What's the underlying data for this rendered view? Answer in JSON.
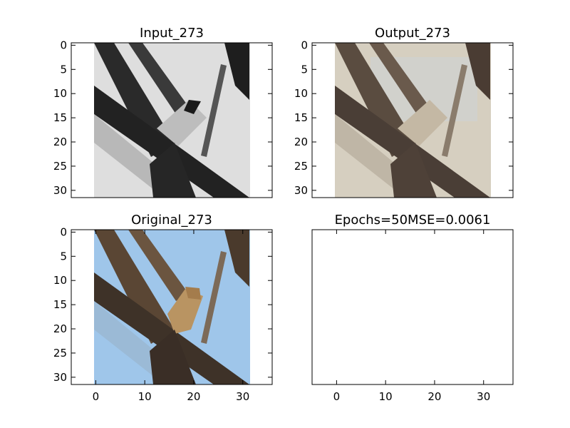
{
  "chart_data": [
    {
      "type": "image",
      "title": "Input_273",
      "image": "grayscale",
      "xlim": [
        -5,
        36
      ],
      "ylim": [
        31.5,
        -0.5
      ],
      "xticks": [],
      "yticks": [
        0,
        5,
        10,
        15,
        20,
        25,
        30
      ],
      "extent": [
        -0.5,
        31.5,
        31.5,
        -0.5
      ]
    },
    {
      "type": "image",
      "title": "Output_273",
      "image": "reconstruction",
      "xlim": [
        -5,
        36
      ],
      "ylim": [
        31.5,
        -0.5
      ],
      "xticks": [],
      "yticks": [
        0,
        5,
        10,
        15,
        20,
        25,
        30
      ],
      "extent": [
        -0.5,
        31.5,
        31.5,
        -0.5
      ]
    },
    {
      "type": "image",
      "title": "Original_273",
      "image": "color",
      "xlim": [
        -5,
        36
      ],
      "ylim": [
        31.5,
        -0.5
      ],
      "xticks": [
        0,
        10,
        20,
        30
      ],
      "yticks": [
        0,
        5,
        10,
        15,
        20,
        25,
        30
      ],
      "extent": [
        -0.5,
        31.5,
        31.5,
        -0.5
      ]
    },
    {
      "type": "image",
      "title": "Epochs=50MSE=0.0061",
      "image": "none",
      "xlim": [
        -5,
        36
      ],
      "ylim": [
        31.5,
        -0.5
      ],
      "xticks": [
        0,
        10,
        20,
        30
      ],
      "yticks": [],
      "extent": null
    }
  ]
}
